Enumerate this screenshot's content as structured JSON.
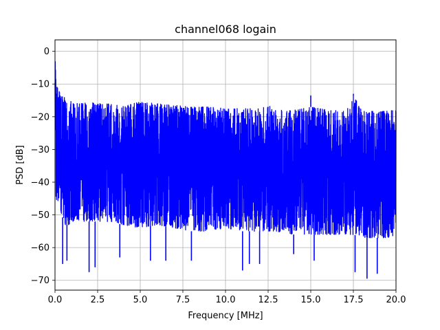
{
  "chart_data": {
    "type": "line",
    "title": "channel068 logain",
    "xlabel": "Frequency [MHz]",
    "ylabel": "PSD [dB]",
    "xlim": [
      0,
      20
    ],
    "ylim": [
      -73,
      3.5
    ],
    "xticks": [
      0.0,
      2.5,
      5.0,
      7.5,
      10.0,
      12.5,
      15.0,
      17.5,
      20.0
    ],
    "xtick_labels": [
      "0.0",
      "2.5",
      "5.0",
      "7.5",
      "10.0",
      "12.5",
      "15.0",
      "17.5",
      "20.0"
    ],
    "yticks": [
      0,
      -10,
      -20,
      -30,
      -40,
      -50,
      -60,
      -70
    ],
    "ytick_labels": [
      "0",
      "−10",
      "−20",
      "−30",
      "−40",
      "−50",
      "−60",
      "−70"
    ],
    "grid": true,
    "series": [
      {
        "color": "#0000ff",
        "description": "dense noisy PSD trace; upper envelope and lower envelope per frequency",
        "x": [
          0.0,
          0.05,
          0.1,
          0.2,
          0.4,
          0.6,
          0.8,
          1.0,
          1.5,
          2.0,
          2.5,
          3.0,
          4.0,
          5.0,
          6.0,
          7.0,
          8.0,
          9.0,
          10.0,
          11.0,
          12.0,
          12.5,
          13.0,
          14.0,
          15.0,
          16.0,
          17.0,
          17.5,
          18.0,
          19.0,
          20.0
        ],
        "upper": [
          0.5,
          -8,
          -10,
          -12,
          -13,
          -14.5,
          -15,
          -15.5,
          -16,
          -15.5,
          -16,
          -16,
          -16.5,
          -15.5,
          -16,
          -16.5,
          -17,
          -17,
          -17.5,
          -17.5,
          -17.5,
          -16.5,
          -18,
          -18,
          -17,
          -18,
          -18,
          -13.5,
          -18,
          -18.5,
          -18
        ],
        "lower": [
          -20,
          -44,
          -46,
          -47,
          -50,
          -53,
          -53,
          -52,
          -52,
          -52,
          -52,
          -52,
          -53,
          -54,
          -53,
          -54,
          -55,
          -55,
          -54,
          -55,
          -55,
          -55,
          -55,
          -56,
          -56,
          -56,
          -56,
          -56,
          -57,
          -57,
          -57
        ]
      }
    ],
    "dips": [
      {
        "x": 0.45,
        "y": -65
      },
      {
        "x": 0.7,
        "y": -64
      },
      {
        "x": 2.0,
        "y": -67.5
      },
      {
        "x": 2.35,
        "y": -66
      },
      {
        "x": 3.8,
        "y": -63
      },
      {
        "x": 5.6,
        "y": -64
      },
      {
        "x": 6.5,
        "y": -64
      },
      {
        "x": 8.0,
        "y": -64
      },
      {
        "x": 11.0,
        "y": -67
      },
      {
        "x": 11.4,
        "y": -65
      },
      {
        "x": 12.0,
        "y": -65
      },
      {
        "x": 14.0,
        "y": -62
      },
      {
        "x": 15.2,
        "y": -64
      },
      {
        "x": 17.6,
        "y": -67.5
      },
      {
        "x": 18.3,
        "y": -69.5
      },
      {
        "x": 18.9,
        "y": -68
      }
    ],
    "spikes": [
      {
        "x": 15.0,
        "y": -13.5
      },
      {
        "x": 17.5,
        "y": -13
      }
    ]
  }
}
